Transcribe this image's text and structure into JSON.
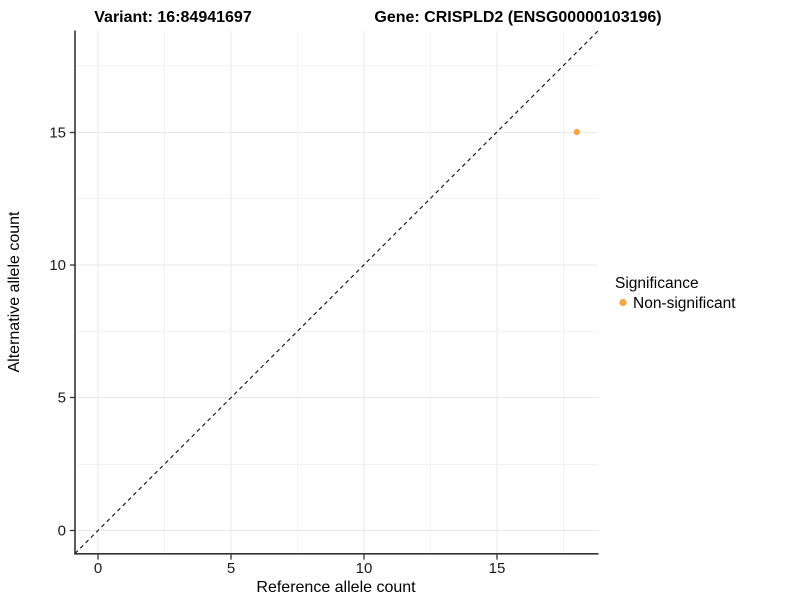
{
  "chart_data": {
    "type": "scatter",
    "titles": {
      "variant": "Variant: 16:84941697",
      "gene": "Gene: CRISPLD2 (ENSG00000103196)"
    },
    "xlabel": "Reference allele count",
    "ylabel": "Alternative allele count",
    "x_ticks": [
      0,
      5,
      10,
      15
    ],
    "y_ticks": [
      0,
      5,
      10,
      15
    ],
    "xlim": [
      -0.9,
      18.8
    ],
    "ylim": [
      -0.9,
      18.8
    ],
    "grid": "major and minor gridlines, light gray on white",
    "reference_line": {
      "type": "identity y=x",
      "style": "dashed",
      "color": "#000000"
    },
    "points": [
      {
        "x": 18,
        "y": 15,
        "series": "Non-significant",
        "color": "#FAA53C"
      }
    ],
    "legend": {
      "title": "Significance",
      "position": "right",
      "items": [
        {
          "label": "Non-significant",
          "marker": "circle",
          "color": "#FAA53C"
        }
      ]
    },
    "colors": {
      "axis": "#343434",
      "grid_major": "#E9E9E9",
      "grid_minor": "#F3F3F3",
      "point_orange": "#FAA53C"
    }
  }
}
